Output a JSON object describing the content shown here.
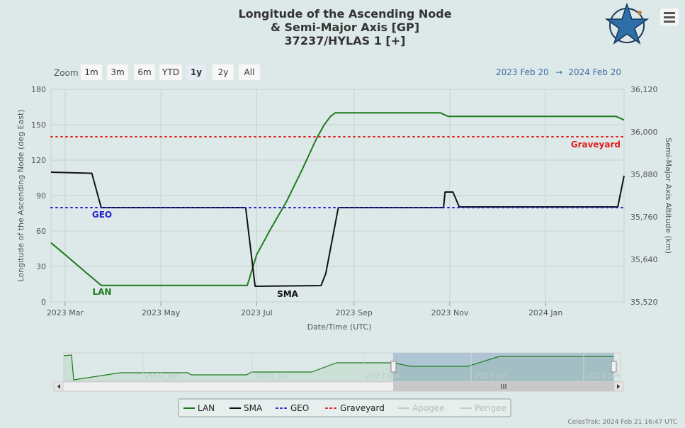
{
  "title": {
    "line1": "Longitude of the Ascending Node",
    "line2": "& Semi-Major Axis [GP]",
    "line3": "37237/HYLAS 1 [+]"
  },
  "zoom": {
    "label": "Zoom",
    "buttons": [
      {
        "label": "1m",
        "selected": false
      },
      {
        "label": "3m",
        "selected": false
      },
      {
        "label": "6m",
        "selected": false
      },
      {
        "label": "YTD",
        "selected": false
      },
      {
        "label": "1y",
        "selected": true
      },
      {
        "label": "2y",
        "selected": false
      },
      {
        "label": "All",
        "selected": false
      }
    ]
  },
  "range": {
    "from": "2023 Feb 20",
    "arrow": "→",
    "to": "2024 Feb 20"
  },
  "credit": "CelesTrak: 2024 Feb 21 16:47 UTC",
  "navigator": {
    "labels": [
      "2022 Jan",
      "2022 Jul",
      "2023 Jan",
      "2023 Jul",
      "2024 Jan"
    ]
  },
  "legend": [
    {
      "name": "LAN",
      "color": "#1e7a1e",
      "style": "solid",
      "visible": true
    },
    {
      "name": "SMA",
      "color": "#111111",
      "style": "solid",
      "visible": true
    },
    {
      "name": "GEO",
      "color": "#2222cc",
      "style": "dotted",
      "visible": true
    },
    {
      "name": "Graveyard",
      "color": "#e02020",
      "style": "dotted",
      "visible": true
    },
    {
      "name": "Apogee",
      "color": "#bbbbbb",
      "style": "solid",
      "visible": false
    },
    {
      "name": "Perigee",
      "color": "#bbbbbb",
      "style": "solid",
      "visible": false
    }
  ],
  "chart_data": {
    "type": "line",
    "title": "Longitude of the Ascending Node & Semi-Major Axis [GP] 37237/HYLAS 1 [+]",
    "xlabel": "Date/Time (UTC)",
    "xlim": [
      "2023-02-20",
      "2024-02-20"
    ],
    "x_ticks": [
      {
        "date": "2023-03-01",
        "label": "2023 Mar"
      },
      {
        "date": "2023-05-01",
        "label": "2023 May"
      },
      {
        "date": "2023-07-01",
        "label": "2023 Jul"
      },
      {
        "date": "2023-09-01",
        "label": "2023 Sep"
      },
      {
        "date": "2023-11-01",
        "label": "2023 Nov"
      },
      {
        "date": "2024-01-01",
        "label": "2024 Jan"
      }
    ],
    "y_left": {
      "label": "Longitude of the Ascending Node (deg East)",
      "lim": [
        0,
        180
      ],
      "ticks": [
        0,
        30,
        60,
        90,
        120,
        150,
        180
      ]
    },
    "y_right": {
      "label": "Semi-Major Axis Altitude (km)",
      "lim": [
        35520,
        36120
      ],
      "ticks": [
        "35,520",
        "35,640",
        "35,760",
        "35,880",
        "36,000",
        "36,120"
      ]
    },
    "grid": true,
    "series": [
      {
        "name": "LAN",
        "axis": "left",
        "color": "#1e7a1e",
        "points": [
          [
            "2023-02-20",
            50
          ],
          [
            "2023-03-01",
            40
          ],
          [
            "2023-03-15",
            24
          ],
          [
            "2023-03-24",
            14
          ],
          [
            "2023-06-25",
            14
          ],
          [
            "2023-07-01",
            40
          ],
          [
            "2023-07-10",
            62
          ],
          [
            "2023-07-20",
            85
          ],
          [
            "2023-07-30",
            112
          ],
          [
            "2023-08-08",
            138
          ],
          [
            "2023-08-13",
            150
          ],
          [
            "2023-08-17",
            157
          ],
          [
            "2023-08-20",
            160
          ],
          [
            "2023-10-26",
            160
          ],
          [
            "2023-10-31",
            157
          ],
          [
            "2024-02-15",
            157
          ],
          [
            "2024-02-20",
            154
          ]
        ]
      },
      {
        "name": "SMA",
        "axis": "right",
        "color": "#111111",
        "points": [
          [
            "2023-02-20",
            35886
          ],
          [
            "2023-03-18",
            35883
          ],
          [
            "2023-03-24",
            35786
          ],
          [
            "2023-06-24",
            35786
          ],
          [
            "2023-06-30",
            35564
          ],
          [
            "2023-08-11",
            35566
          ],
          [
            "2023-08-14",
            35600
          ],
          [
            "2023-08-22",
            35786
          ],
          [
            "2023-10-28",
            35786
          ],
          [
            "2023-10-29",
            35830
          ],
          [
            "2023-11-03",
            35830
          ],
          [
            "2023-11-07",
            35788
          ],
          [
            "2024-02-16",
            35788
          ],
          [
            "2024-02-20",
            35876
          ]
        ]
      },
      {
        "name": "GEO",
        "axis": "right",
        "color": "#2222cc",
        "value": 35786,
        "style": "dotted"
      },
      {
        "name": "Graveyard",
        "axis": "right",
        "color": "#e02020",
        "value": 35986,
        "style": "dotted"
      }
    ],
    "annotations": [
      {
        "text": "LAN",
        "color": "#1e7a1e"
      },
      {
        "text": "SMA",
        "color": "#111111"
      },
      {
        "text": "GEO",
        "color": "#2222cc"
      },
      {
        "text": "Graveyard",
        "color": "#e02020"
      }
    ]
  }
}
